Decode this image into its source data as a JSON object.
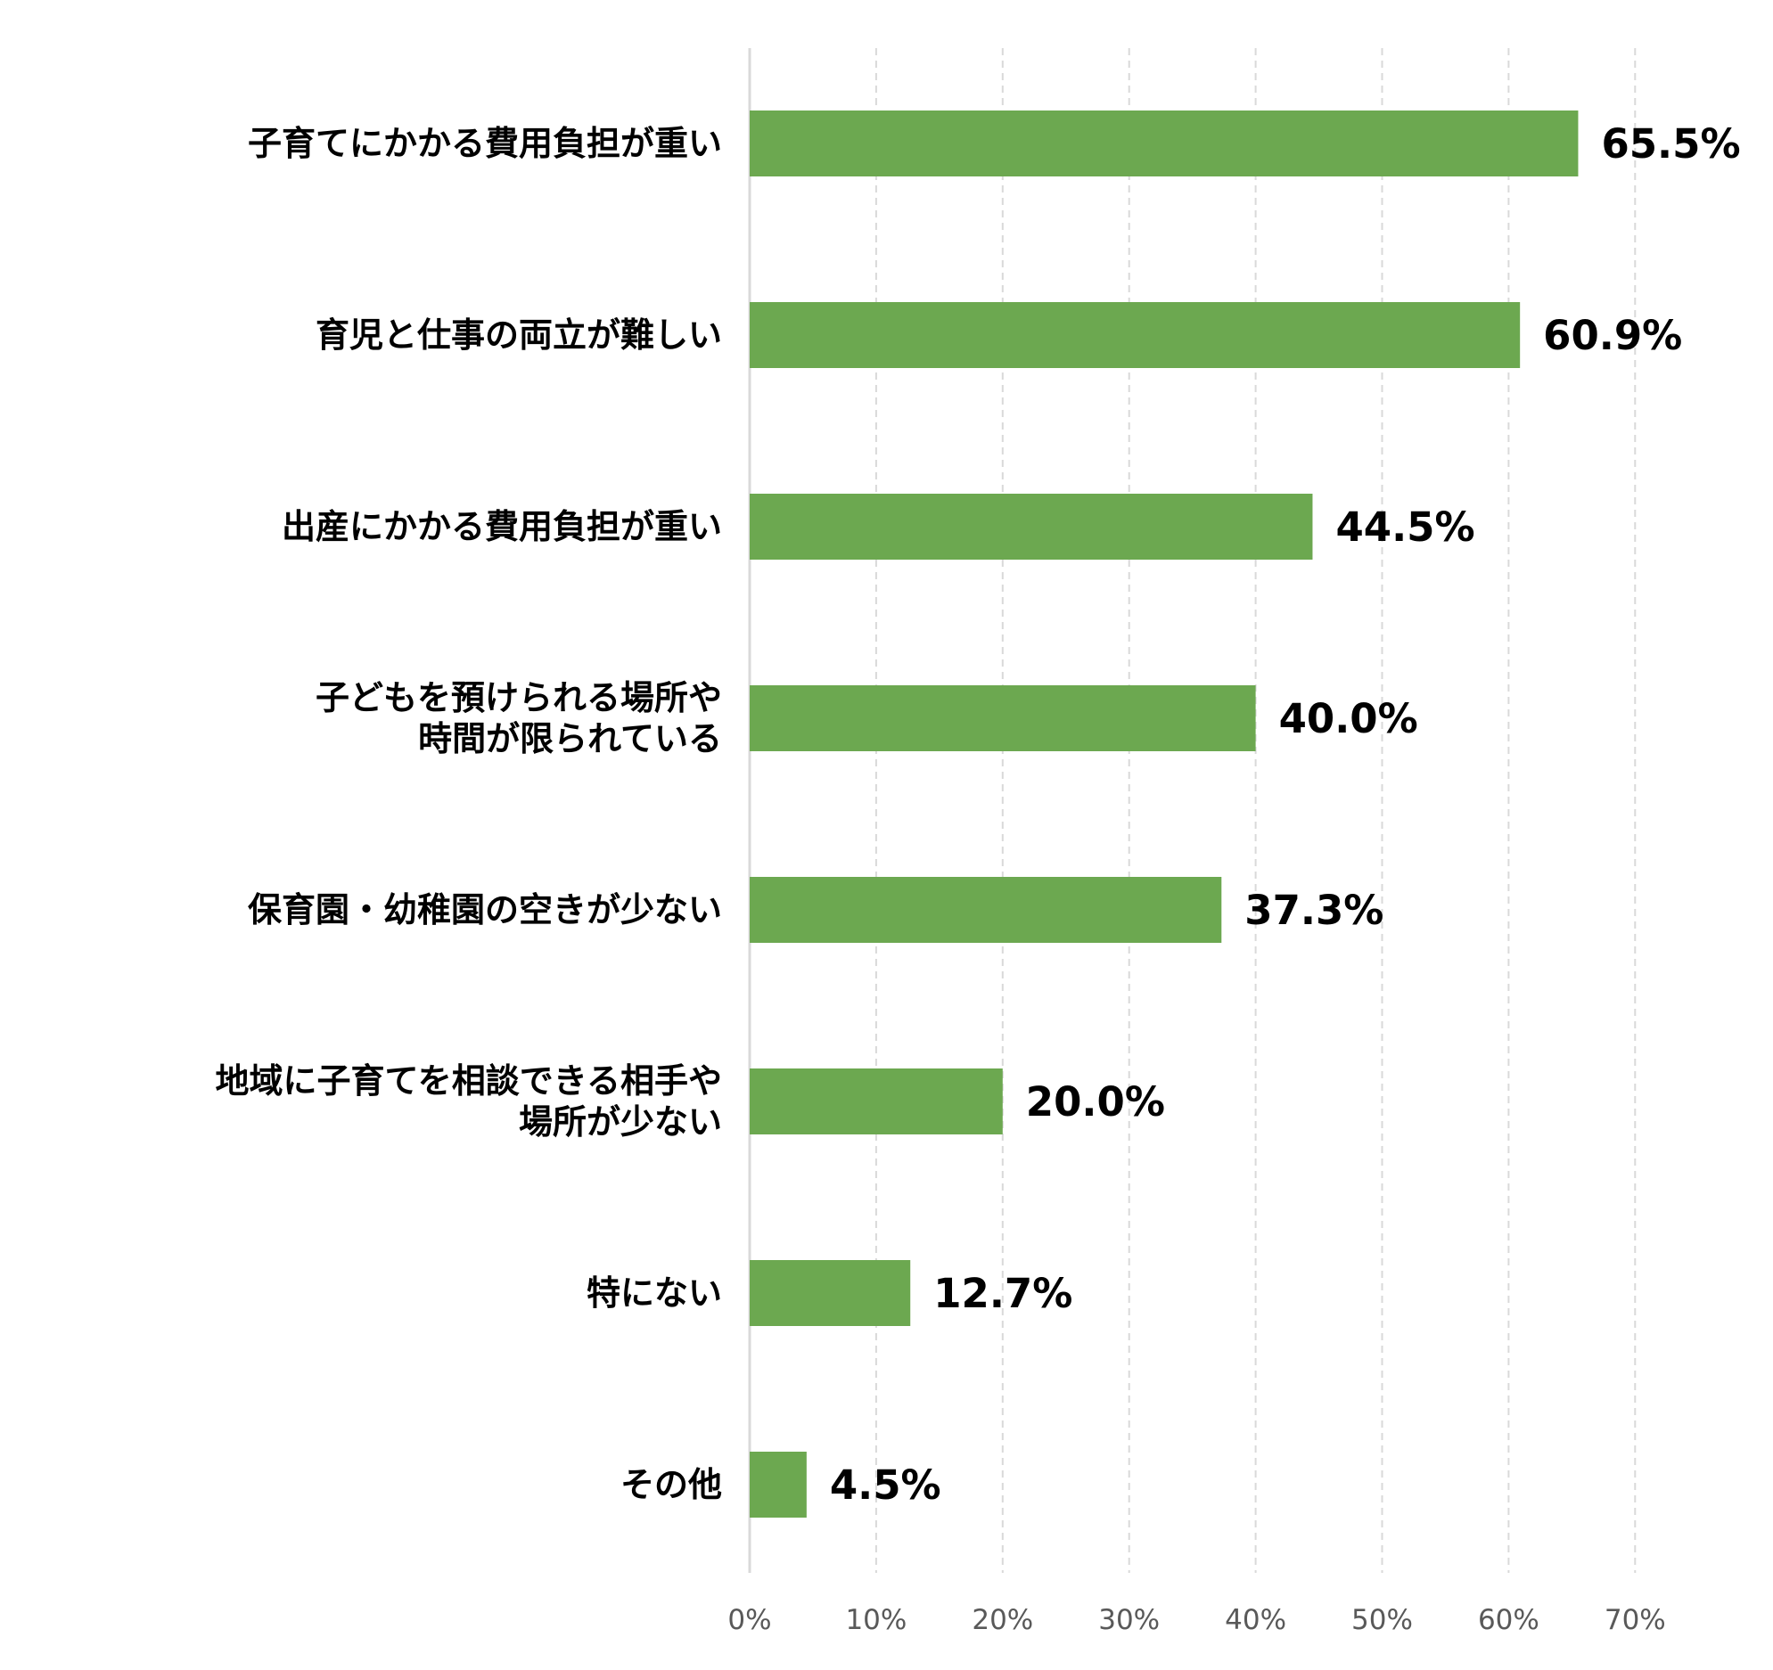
{
  "chart_data": {
    "type": "bar",
    "orientation": "horizontal",
    "title": "",
    "xlabel": "",
    "ylabel": "",
    "categories": [
      [
        "子育てにかかる費用負担が重い"
      ],
      [
        "育児と仕事の両立が難しい"
      ],
      [
        "出産にかかる費用負担が重い"
      ],
      [
        "子どもを預けられる場所や",
        "時間が限られている"
      ],
      [
        "保育園・幼稚園の空きが少ない"
      ],
      [
        "地域に子育てを相談できる相手や",
        "場所が少ない"
      ],
      [
        "特にない"
      ],
      [
        "その他"
      ]
    ],
    "values": [
      65.5,
      60.9,
      44.5,
      40.0,
      37.3,
      20.0,
      12.7,
      4.5
    ],
    "value_labels": [
      "65.5%",
      "60.9%",
      "44.5%",
      "40.0%",
      "37.3%",
      "20.0%",
      "12.7%",
      "4.5%"
    ],
    "xlim": [
      0,
      70
    ],
    "x_ticks": [
      "0%",
      "10%",
      "20%",
      "30%",
      "40%",
      "50%",
      "60%",
      "70%"
    ],
    "grid": true,
    "bar_color": "#6ca850",
    "grid_color": "#d9d9d9"
  }
}
